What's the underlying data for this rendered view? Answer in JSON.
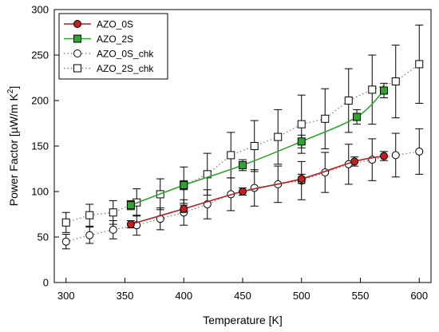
{
  "chart_data": {
    "type": "line",
    "xlabel": "Temperature [K]",
    "ylabel_main": "Power Factor [µW/m K",
    "ylabel_sup": "2",
    "ylabel_close": "]",
    "xlim": [
      290,
      610
    ],
    "ylim": [
      0,
      300
    ],
    "xticks": [
      300,
      350,
      400,
      450,
      500,
      550,
      600
    ],
    "yticks": [
      0,
      50,
      100,
      150,
      200,
      250,
      300
    ],
    "legend_position": "top-left",
    "series": [
      {
        "name": "AZO_0S",
        "style": "solid-line-circle",
        "color": "#c0201e",
        "line_color": "#b22222",
        "x": [
          355,
          400,
          450,
          500,
          545,
          570
        ],
        "y": [
          64,
          81,
          100,
          114,
          133,
          139
        ],
        "err": [
          4,
          4,
          4,
          5,
          5,
          5
        ]
      },
      {
        "name": "AZO_2S",
        "style": "solid-line-square",
        "color": "#2ea52e",
        "line_color": "#2ea52e",
        "x": [
          355,
          400,
          450,
          500,
          547,
          570
        ],
        "y": [
          85,
          107,
          129,
          155,
          182,
          211
        ],
        "err": [
          5,
          5,
          6,
          7,
          8,
          8
        ]
      },
      {
        "name": "AZO_0S_chk",
        "style": "dotted-circle",
        "color": "#ffffff",
        "line_color": "#777777",
        "x": [
          300,
          320,
          340,
          360,
          380,
          400,
          420,
          440,
          460,
          480,
          500,
          520,
          540,
          560,
          580,
          600
        ],
        "y": [
          45,
          52,
          58,
          63,
          70,
          77,
          86,
          97,
          104,
          108,
          112,
          121,
          130,
          135,
          140,
          144
        ],
        "err": [
          8,
          9,
          10,
          11,
          12,
          14,
          16,
          18,
          20,
          20,
          21,
          22,
          22,
          23,
          24,
          25
        ]
      },
      {
        "name": "AZO_2S_chk",
        "style": "dotted-square",
        "color": "#ffffff",
        "line_color": "#777777",
        "x": [
          300,
          320,
          340,
          360,
          380,
          400,
          420,
          440,
          460,
          480,
          500,
          520,
          540,
          560,
          580,
          600
        ],
        "y": [
          66,
          74,
          77,
          88,
          97,
          107,
          119,
          140,
          150,
          160,
          174,
          180,
          200,
          212,
          221,
          240
        ],
        "err": [
          11,
          12,
          13,
          15,
          17,
          20,
          23,
          25,
          28,
          30,
          32,
          33,
          35,
          38,
          40,
          43
        ]
      }
    ]
  }
}
